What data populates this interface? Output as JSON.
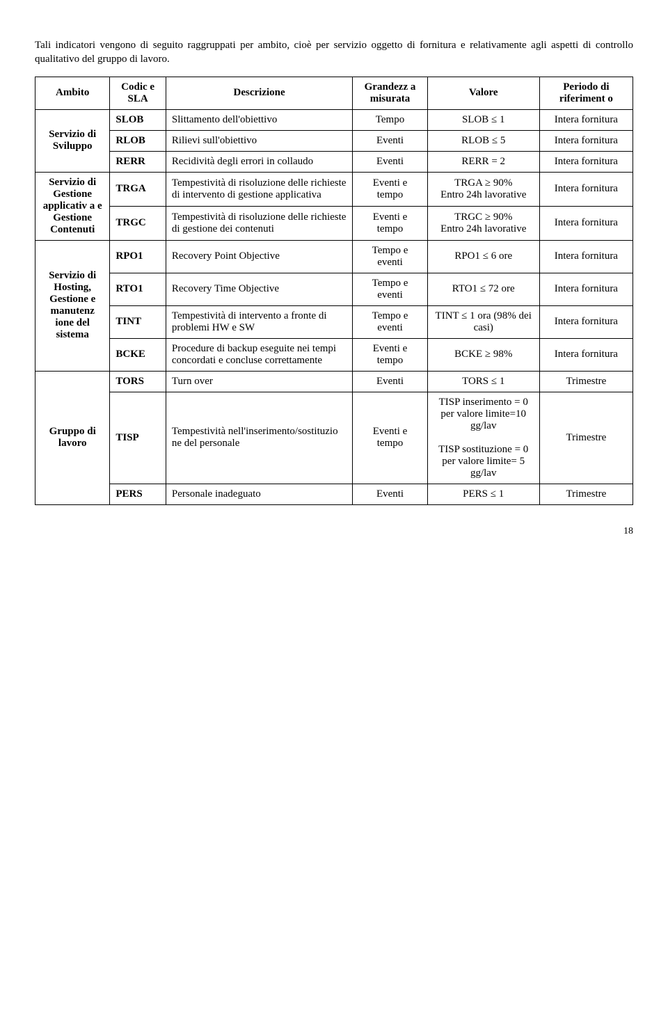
{
  "intro_text": "Tali indicatori vengono di seguito raggruppati per ambito, cioè per servizio oggetto di fornitura e relativamente agli aspetti di controllo qualitativo del gruppo di lavoro.",
  "headers": {
    "ambito": "Ambito",
    "codice": "Codic e SLA",
    "descrizione": "Descrizione",
    "grandezza": "Grandezz a misurata",
    "valore": "Valore",
    "periodo": "Periodo di riferiment o"
  },
  "groups": [
    {
      "ambito": "Servizio di Sviluppo",
      "rows": [
        {
          "cod": "SLOB",
          "desc": "Slittamento dell'obiettivo",
          "grand": "Tempo",
          "valore": "SLOB ≤ 1",
          "periodo": "Intera fornitura"
        },
        {
          "cod": "RLOB",
          "desc": "Rilievi sull'obiettivo",
          "grand": "Eventi",
          "valore": "RLOB ≤ 5",
          "periodo": "Intera fornitura"
        },
        {
          "cod": "RERR",
          "desc": "Recidività degli errori in collaudo",
          "grand": "Eventi",
          "valore": "RERR = 2",
          "periodo": "Intera fornitura"
        }
      ]
    },
    {
      "ambito": "Servizio di Gestione applicativ a e Gestione Contenuti",
      "rows": [
        {
          "cod": "TRGA",
          "desc": "Tempestività di risoluzione delle richieste di intervento di gestione applicativa",
          "grand": "Eventi e tempo",
          "valore": "TRGA ≥ 90%\nEntro 24h lavorative",
          "periodo": "Intera fornitura"
        },
        {
          "cod": "TRGC",
          "desc": "Tempestività di risoluzione delle richieste di gestione dei contenuti",
          "grand": "Eventi e tempo",
          "valore": "TRGC ≥ 90%\nEntro 24h lavorative",
          "periodo": "Intera fornitura"
        }
      ]
    },
    {
      "ambito": "Servizio di Hosting, Gestione e manutenz ione del sistema",
      "rows": [
        {
          "cod": "RPO1",
          "desc": "Recovery Point Objective",
          "grand": "Tempo e eventi",
          "valore": "RPO1 ≤ 6 ore",
          "periodo": "Intera fornitura"
        },
        {
          "cod": "RTO1",
          "desc": "Recovery Time Objective",
          "grand": "Tempo e eventi",
          "valore": "RTO1 ≤ 72 ore",
          "periodo": "Intera fornitura"
        },
        {
          "cod": "TINT",
          "desc": "Tempestività di intervento a fronte di problemi HW e SW",
          "grand": "Tempo e eventi",
          "valore": "TINT ≤ 1 ora (98% dei casi)",
          "periodo": "Intera fornitura"
        },
        {
          "cod": "BCKE",
          "desc": "Procedure di backup eseguite nei tempi concordati e concluse correttamente",
          "grand": "Eventi e tempo",
          "valore": "BCKE ≥ 98%",
          "periodo": "Intera fornitura"
        }
      ]
    },
    {
      "ambito": "Gruppo di lavoro",
      "rows": [
        {
          "cod": "TORS",
          "desc": "Turn over",
          "grand": "Eventi",
          "valore": "TORS ≤ 1",
          "periodo": "Trimestre"
        },
        {
          "cod": "TISP",
          "desc": "Tempestività nell'inserimento/sostituzio ne del personale",
          "grand": "Eventi e tempo",
          "valore": "TISP inserimento = 0 per valore limite=10 gg/lav\n\nTISP sostituzione = 0 per valore limite= 5 gg/lav",
          "periodo": "Trimestre"
        },
        {
          "cod": "PERS",
          "desc": "Personale inadeguato",
          "grand": "Eventi",
          "valore": "PERS ≤ 1",
          "periodo": "Trimestre"
        }
      ]
    }
  ],
  "page_number": "18"
}
